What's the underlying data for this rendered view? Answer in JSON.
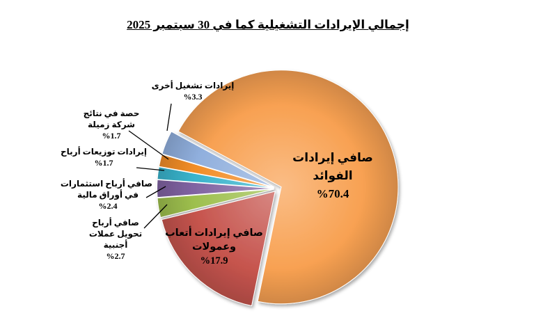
{
  "title": "إجمالي الإيرادات التشغيلية كما في 30 سبتمبر 2025",
  "background_color": "#FFFFFF",
  "text_color": "#000000",
  "chart_data": {
    "type": "pie",
    "title": "إجمالي الإيرادات التشغيلية كما في 30 سبتمبر 2025",
    "values_unit": "percent",
    "direction": "clockwise",
    "start_angle_deg_from_12": -61.6,
    "exploded": true,
    "legend": "none",
    "slices": [
      {
        "name": "net-interest-income",
        "value": 70.4,
        "value_text": "%70.4",
        "color": "#F8A152",
        "label_position": "inside",
        "label_lines": [
          "صافي إيرادات",
          "الفوائد"
        ]
      },
      {
        "name": "net-fees-commissions-income",
        "value": 17.9,
        "value_text": "%17.9",
        "color": "#C6544D",
        "label_position": "inside",
        "label_lines": [
          "صافي إيرادات أتعاب",
          "وعمولات"
        ]
      },
      {
        "name": "net-foreign-currency-translation-gains",
        "value": 2.7,
        "value_text": "%2.7",
        "color": "#9DBF4D",
        "label_position": "outside",
        "label_lines": [
          "صافي أرباح",
          "تحويل عملات",
          "أجنبية"
        ]
      },
      {
        "name": "net-gains-on-securities-investments",
        "value": 2.4,
        "value_text": "%2.4",
        "color": "#7F62A1",
        "label_position": "outside",
        "label_lines": [
          "صافي أرباح استثمارات",
          "في أوراق مالية"
        ]
      },
      {
        "name": "dividends-income",
        "value": 1.7,
        "value_text": "%1.7",
        "color": "#38B3CB",
        "label_position": "outside",
        "label_lines": [
          "إيرادات توزيعات أرباح"
        ]
      },
      {
        "name": "share-of-associate-company-results",
        "value": 1.7,
        "value_text": "%1.7",
        "color": "#F28D26",
        "label_position": "outside",
        "label_lines": [
          "حصة في نتائج",
          "شركة زميلة"
        ]
      },
      {
        "name": "other-operating-revenues",
        "value": 3.3,
        "value_text": "%3.3",
        "color": "#90AFDD",
        "label_position": "outside",
        "label_lines": [
          "إيرادات تشغيل أخرى"
        ]
      }
    ]
  }
}
